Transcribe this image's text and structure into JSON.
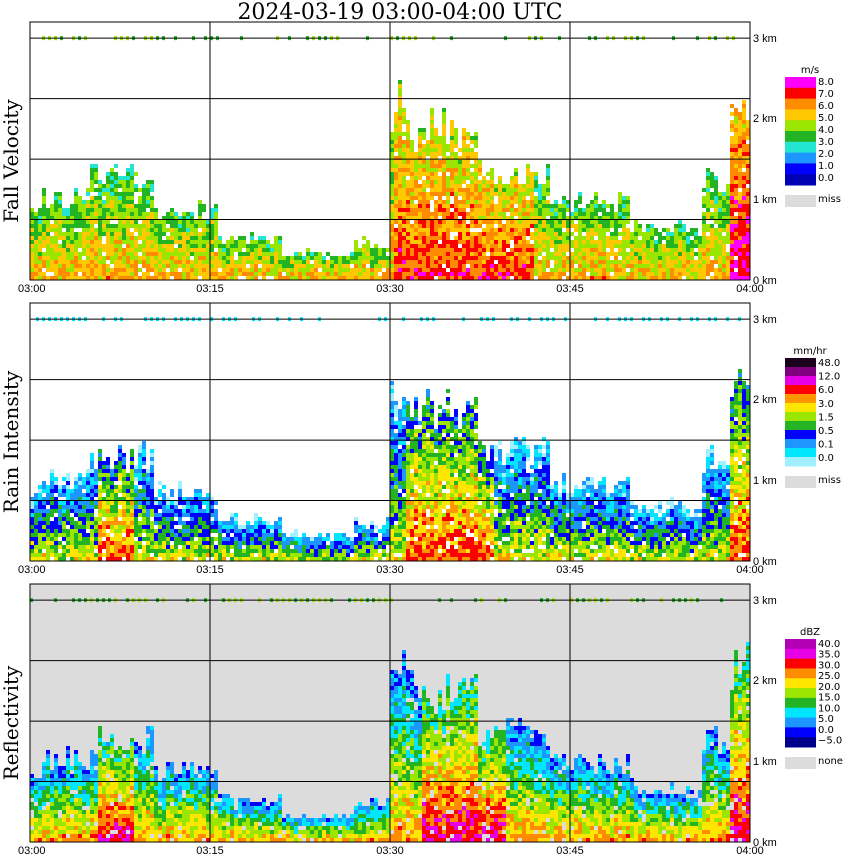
{
  "title": "2024-03-19   03:00-04:00 UTC",
  "chart_data": [
    {
      "type": "heatmap",
      "panel": "fall-velocity",
      "ylabel": "Fall Velocity",
      "x_ticks": [
        "03:00",
        "03:15",
        "03:30",
        "03:45",
        "04:00"
      ],
      "y_ticks": [
        "0 km",
        "1 km",
        "2 km",
        "3 km"
      ],
      "xlim": [
        "03:00",
        "04:00"
      ],
      "ylim_km": [
        0,
        3.2
      ],
      "grid": true,
      "background": "#ffffff",
      "legend": {
        "unit": "m/s",
        "labels": [
          "8.0",
          "7.0",
          "6.0",
          "5.0",
          "4.0",
          "3.0",
          "2.0",
          "1.0",
          "0.0"
        ],
        "colors": [
          "#ff00ff",
          "#ff0000",
          "#ff8c00",
          "#ffc800",
          "#9be600",
          "#22b422",
          "#22e6d2",
          "#1e96ff",
          "#0000ff",
          "#0000b4"
        ],
        "missing_label": "miss",
        "missing_color": "#dcdcdc"
      }
    },
    {
      "type": "heatmap",
      "panel": "rain-intensity",
      "ylabel": "Rain Intensity",
      "x_ticks": [
        "03:00",
        "03:15",
        "03:30",
        "03:45",
        "04:00"
      ],
      "y_ticks": [
        "0 km",
        "1 km",
        "2 km",
        "3 km"
      ],
      "xlim": [
        "03:00",
        "04:00"
      ],
      "ylim_km": [
        0,
        3.2
      ],
      "grid": true,
      "background": "#ffffff",
      "legend": {
        "unit": "mm/hr",
        "labels": [
          "48.0",
          "12.0",
          "6.0",
          "3.0",
          "1.5",
          "0.5",
          "0.1",
          "0.0"
        ],
        "colors": [
          "#1a001a",
          "#800080",
          "#e600e6",
          "#ff0000",
          "#ff9600",
          "#ffe600",
          "#9be600",
          "#22b422",
          "#0000ff",
          "#1e96ff",
          "#00e6ff",
          "#a0f0ff"
        ],
        "missing_label": "miss",
        "missing_color": "#dcdcdc"
      }
    },
    {
      "type": "heatmap",
      "panel": "reflectivity",
      "ylabel": "Reflectivity",
      "x_ticks": [
        "03:00",
        "03:15",
        "03:30",
        "03:45",
        "04:00"
      ],
      "y_ticks": [
        "0 km",
        "1 km",
        "2 km",
        "3 km"
      ],
      "xlim": [
        "03:00",
        "04:00"
      ],
      "ylim_km": [
        0,
        3.2
      ],
      "grid": true,
      "background": "#dcdcdc",
      "legend": {
        "unit": "dBZ",
        "labels": [
          "40.0",
          "35.0",
          "30.0",
          "25.0",
          "20.0",
          "15.0",
          "10.0",
          "5.0",
          "0.0",
          "−5.0"
        ],
        "colors": [
          "#b400b4",
          "#e600e6",
          "#ff0000",
          "#ff8c00",
          "#ffe600",
          "#9be600",
          "#22b422",
          "#00e6ff",
          "#1e96ff",
          "#0000ff",
          "#00008c"
        ],
        "missing_label": "none",
        "missing_color": "#dcdcdc"
      }
    }
  ]
}
